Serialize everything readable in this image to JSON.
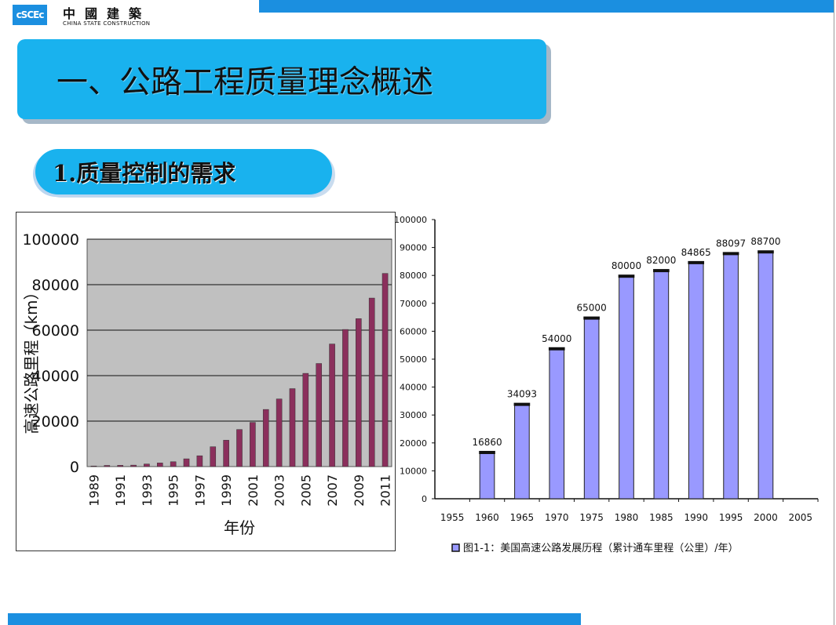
{
  "header": {
    "logo_mark": "cSCEc",
    "company_cn": "中國建築",
    "company_en": "CHINA STATE CONSTRUCTION"
  },
  "slide": {
    "title": "一、公路工程质量理念概述",
    "subtitle": "1.质量控制的需求"
  },
  "colors": {
    "brand_blue": "#1b8fe0",
    "banner_blue": "#19b2ee",
    "china_bar": "#8b2f5c",
    "usa_bar": "#9999ff"
  },
  "chart_data": [
    {
      "type": "bar",
      "title": "",
      "xlabel": "年份",
      "ylabel": "高速公路里程（km）",
      "ylim": [
        0,
        100000
      ],
      "yticks": [
        "0",
        "20000",
        "40000",
        "60000",
        "80000",
        "100000"
      ],
      "categories": [
        "1989",
        "1990",
        "1991",
        "1992",
        "1993",
        "1994",
        "1995",
        "1996",
        "1997",
        "1998",
        "1999",
        "2000",
        "2001",
        "2002",
        "2003",
        "2004",
        "2005",
        "2006",
        "2007",
        "2008",
        "2009",
        "2010",
        "2011"
      ],
      "xtick_labels": [
        "1989",
        "1991",
        "1993",
        "1995",
        "1997",
        "1999",
        "2001",
        "2003",
        "2005",
        "2007",
        "2009",
        "2011"
      ],
      "values": [
        271,
        522,
        574,
        652,
        1145,
        1603,
        2141,
        3422,
        4771,
        8733,
        11605,
        16314,
        19437,
        25130,
        29745,
        34288,
        41005,
        45339,
        53913,
        60302,
        65055,
        74113,
        84946
      ],
      "grid": true,
      "background": "#c0c0c0"
    },
    {
      "type": "bar",
      "title": "",
      "legend": "图1-1：美国高速公路发展历程（累计通车里程（公里）/年）",
      "legend_position": "bottom",
      "ylim": [
        0,
        100000
      ],
      "yticks": [
        "0",
        "10000",
        "20000",
        "30000",
        "40000",
        "50000",
        "60000",
        "70000",
        "80000",
        "90000",
        "100000"
      ],
      "x_axis_labels": [
        "1955",
        "1960",
        "1965",
        "1970",
        "1975",
        "1980",
        "1985",
        "1990",
        "1995",
        "2000",
        "2005"
      ],
      "categories": [
        "1960",
        "1965",
        "1970",
        "1975",
        "1980",
        "1985",
        "1990",
        "1995",
        "2000"
      ],
      "values": [
        16860,
        34093,
        54000,
        65000,
        80000,
        82000,
        84865,
        88097,
        88700
      ],
      "data_labels": [
        "16860",
        "34093",
        "54000",
        "65000",
        "80000",
        "82000",
        "84865",
        "88097",
        "88700"
      ],
      "grid": false
    }
  ]
}
